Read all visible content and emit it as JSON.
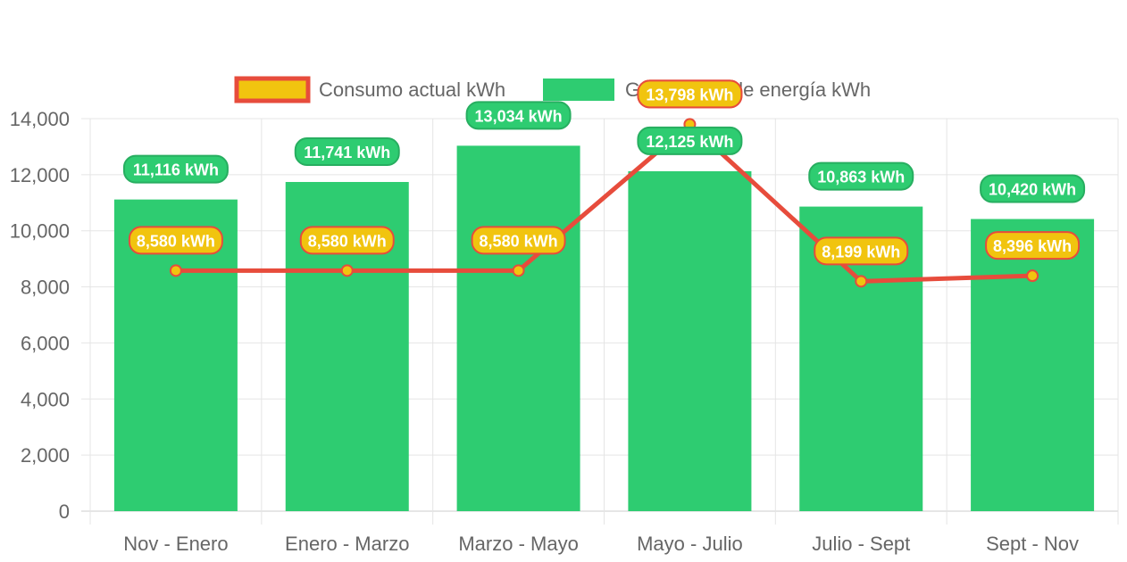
{
  "chart_data": {
    "type": "bar",
    "categories": [
      "Nov - Enero",
      "Enero - Marzo",
      "Marzo - Mayo",
      "Mayo - Julio",
      "Julio - Sept",
      "Sept - Nov"
    ],
    "series": [
      {
        "name": "Consumo actual kWh",
        "type": "line",
        "values": [
          8580,
          8580,
          8580,
          13798,
          8199,
          8396
        ],
        "labels": [
          "8,580 kWh",
          "8,580 kWh",
          "8,580 kWh",
          "13,798 kWh",
          "8,199 kWh",
          "8,396 kWh"
        ],
        "color": "#e74c3c",
        "fill_color": "#f1c40f"
      },
      {
        "name": "Generación de energía kWh",
        "type": "bar",
        "values": [
          11116,
          11741,
          13034,
          12125,
          10863,
          10420
        ],
        "labels": [
          "11,116 kWh",
          "11,741 kWh",
          "13,034 kWh",
          "12,125 kWh",
          "10,863 kWh",
          "10,420 kWh"
        ],
        "color": "#2ecc71"
      }
    ],
    "ylim": [
      0,
      14000
    ],
    "yticks": [
      "0",
      "2,000",
      "4,000",
      "6,000",
      "8,000",
      "10,000",
      "12,000",
      "14,000"
    ],
    "legend_position": "top-center",
    "grid": true
  }
}
